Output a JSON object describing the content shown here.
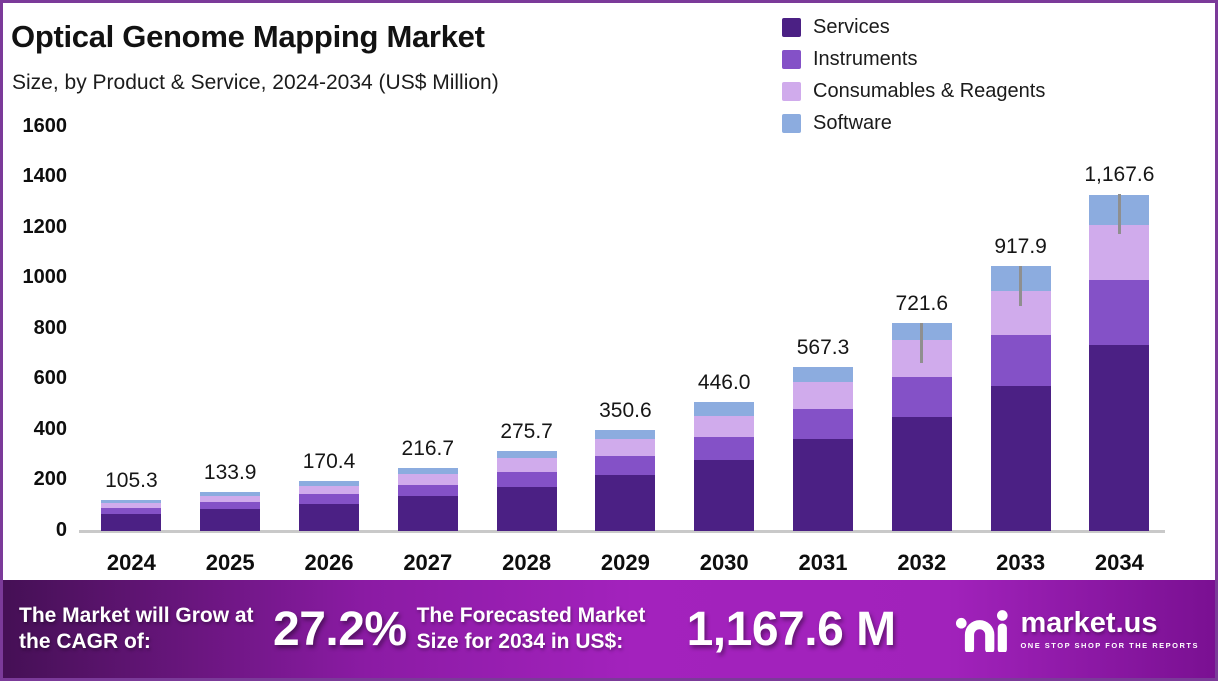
{
  "header": {
    "title": "Optical Genome Mapping Market",
    "subtitle": "Size, by Product & Service, 2024-2034 (US$ Million)"
  },
  "chart_data": {
    "type": "bar",
    "stacked": true,
    "title": "Optical Genome Mapping Market Size, by Product & Service, 2024-2034 (US$ Million)",
    "categories": [
      "2024",
      "2025",
      "2026",
      "2027",
      "2028",
      "2029",
      "2030",
      "2031",
      "2032",
      "2033",
      "2034"
    ],
    "totals": [
      105.3,
      133.9,
      170.4,
      216.7,
      275.7,
      350.6,
      446.0,
      567.3,
      721.6,
      917.9,
      1167.6
    ],
    "total_labels": [
      "105.3",
      "133.9",
      "170.4",
      "216.7",
      "275.7",
      "350.6",
      "446.0",
      "567.3",
      "721.6",
      "917.9",
      "1,167.6"
    ],
    "series": [
      {
        "name": "Services",
        "color": "#4b2084",
        "values": [
          57.9,
          73.5,
          93.5,
          119.0,
          151.5,
          192.5,
          245.3,
          317.0,
          395.0,
          503.0,
          646.0
        ]
      },
      {
        "name": "Instruments",
        "color": "#8451c7",
        "values": [
          20.0,
          25.2,
          32.2,
          40.8,
          51.8,
          65.8,
          78.2,
          107.0,
          140.0,
          177.0,
          225.0
        ]
      },
      {
        "name": "Consumables & Reagents",
        "color": "#d0abec",
        "values": [
          17.9,
          22.8,
          29.4,
          37.2,
          47.3,
          60.4,
          74.5,
          93.0,
          128.0,
          154.0,
          189.0
        ]
      },
      {
        "name": "Software",
        "color": "#8cacdf",
        "values": [
          9.5,
          12.4,
          15.3,
          19.7,
          25.1,
          31.9,
          48.0,
          50.3,
          58.6,
          83.9,
          107.6
        ]
      }
    ],
    "xlabel": "",
    "ylabel": "",
    "ylim": [
      0,
      1600
    ],
    "ytick_step": 200,
    "yticks": [
      "0",
      "200",
      "400",
      "600",
      "800",
      "1000",
      "1200",
      "1400",
      "1600"
    ],
    "grid": false,
    "legend_position": "top-right",
    "error_bars": {
      "years": [
        "2032",
        "2033",
        "2034"
      ]
    }
  },
  "footer": {
    "cagr_label": "The Market will Grow at the CAGR of:",
    "cagr_value": "27.2%",
    "forecast_label": "The Forecasted Market Size for 2034 in US$:",
    "forecast_value": "1,167.6 M",
    "brand": "market.us",
    "brand_tagline": "ONE STOP SHOP FOR THE REPORTS"
  },
  "colors": {
    "frame_border": "#7b3a99",
    "baseline": "#c9c9c9",
    "error_whisker": "#8f8f8f",
    "text": "#141414",
    "footer_gradient": [
      "#451055",
      "#a322bd",
      "#7a1092"
    ]
  }
}
